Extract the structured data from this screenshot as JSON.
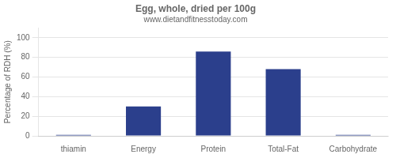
{
  "chart_data": {
    "type": "bar",
    "title": "Egg, whole, dried per 100g",
    "subtitle": "www.dietandfitnesstoday.com",
    "categories": [
      "thiamin",
      "Energy",
      "Protein",
      "Total-Fat",
      "Carbohydrate"
    ],
    "values": [
      1,
      30,
      86,
      68,
      1
    ],
    "color": "#2b3f8c",
    "ylabel": "Percentage of RDH (%)",
    "ylim": [
      0,
      110
    ],
    "yticks": [
      0,
      20,
      40,
      60,
      80,
      100
    ],
    "grid": true
  }
}
